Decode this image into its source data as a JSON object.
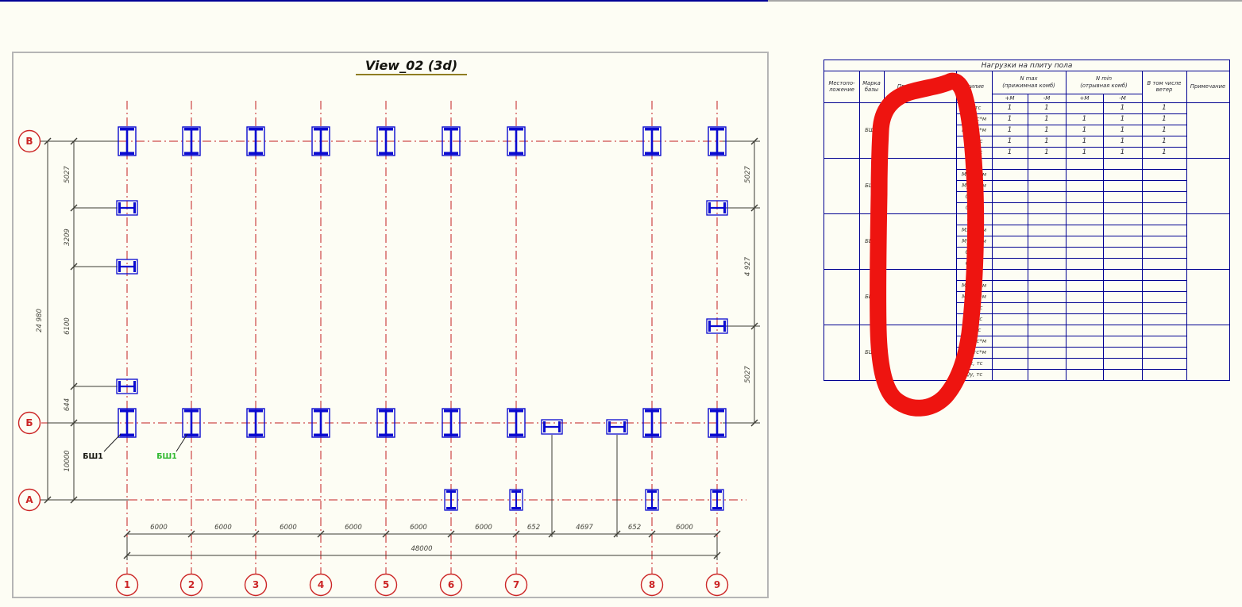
{
  "view": {
    "title": "View_02 (3d)"
  },
  "plan": {
    "grid_bubbles_bottom": [
      "1",
      "2",
      "3",
      "4",
      "5",
      "6",
      "7",
      "8",
      "9"
    ],
    "grid_bubbles_left": [
      "В",
      "Б",
      "А"
    ],
    "dims_bottom_segments": [
      "6000",
      "6000",
      "6000",
      "6000",
      "6000",
      "6000",
      "652",
      "4697",
      "652",
      "6000"
    ],
    "dims_bottom_total": "48000",
    "dims_left_segments": [
      "5027",
      "3209",
      "6100",
      "644",
      "10000"
    ],
    "dims_left_total": "24 980",
    "dims_right_segments": [
      "5027",
      "4 927",
      "5027"
    ],
    "labels": {
      "column_black": "БШ1",
      "column_green": "БШ1"
    },
    "colors": {
      "grid": "#c42020",
      "column": "#0a0ad0",
      "dimension": "#45453c",
      "bubble": "#cc2525",
      "green_label": "#2eb82e"
    }
  },
  "table": {
    "title": "Нагрузки на плиту пола",
    "col_location": "Местопо-\nложение",
    "col_mark": "Марка\nбазы",
    "col_sign_rule": "Правило знаков",
    "col_force": "Усилие",
    "col_nmax": "N max\n(прижимная комб)",
    "col_nmin": "N min\n(отрывная комб)",
    "col_plus_m": "+М",
    "col_minus_m": "-М",
    "col_wind": "В том числе\nветер",
    "col_note": "Примечание",
    "force_row_labels": [
      "N, тс",
      "Mx, тс*м",
      "My, тс*м",
      "Qx, тс",
      "Qy, тс"
    ],
    "groups": [
      {
        "mark": "БШ1",
        "values": [
          [
            "1",
            "1",
            "",
            "1",
            "1"
          ],
          [
            "1",
            "1",
            "1",
            "1",
            "1"
          ],
          [
            "1",
            "1",
            "1",
            "1",
            "1"
          ],
          [
            "1",
            "1",
            "1",
            "1",
            "1"
          ],
          [
            "1",
            "1",
            "1",
            "1",
            "1"
          ]
        ]
      },
      {
        "mark": "БШ2",
        "values": [
          [
            "",
            "",
            "",
            "",
            ""
          ],
          [
            "",
            "",
            "",
            "",
            ""
          ],
          [
            "",
            "",
            "",
            "",
            ""
          ],
          [
            "",
            "",
            "",
            "",
            ""
          ],
          [
            "",
            "",
            "",
            "",
            ""
          ]
        ]
      },
      {
        "mark": "БШ3",
        "values": [
          [
            "",
            "",
            "",
            "",
            ""
          ],
          [
            "",
            "",
            "",
            "",
            ""
          ],
          [
            "",
            "",
            "",
            "",
            ""
          ],
          [
            "",
            "",
            "",
            "",
            ""
          ],
          [
            "",
            "",
            "",
            "",
            ""
          ]
        ]
      },
      {
        "mark": "БШ4",
        "values": [
          [
            "",
            "",
            "",
            "",
            ""
          ],
          [
            "",
            "",
            "",
            "",
            ""
          ],
          [
            "",
            "",
            "",
            "",
            ""
          ],
          [
            "",
            "",
            "",
            "",
            ""
          ],
          [
            "",
            "",
            "",
            "",
            ""
          ]
        ]
      },
      {
        "mark": "БШ5",
        "values": [
          [
            "",
            "",
            "",
            "",
            ""
          ],
          [
            "",
            "",
            "",
            "",
            ""
          ],
          [
            "",
            "",
            "",
            "",
            ""
          ],
          [
            "",
            "",
            "",
            "",
            ""
          ],
          [
            "",
            "",
            "",
            "",
            ""
          ]
        ]
      }
    ]
  },
  "annotation": {
    "marker_color": "#ee1410"
  }
}
